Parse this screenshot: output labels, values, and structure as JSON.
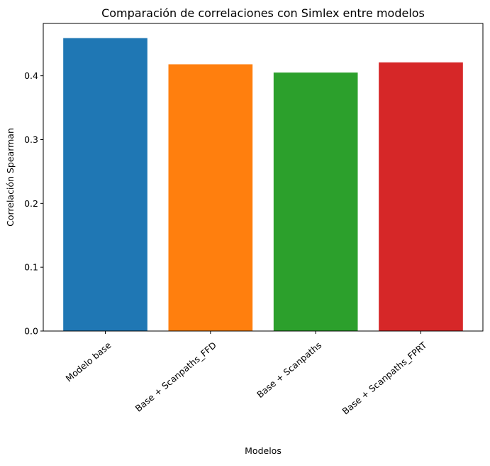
{
  "chart_data": {
    "type": "bar",
    "title": "Comparación de correlaciones con Simlex entre modelos",
    "xlabel": "Modelos",
    "ylabel": "Correlación Spearman",
    "categories": [
      "Modelo base",
      "Base + Scanpaths_FFD",
      "Base + Scanpaths",
      "Base + Scanpaths_FPRT"
    ],
    "values": [
      0.459,
      0.418,
      0.405,
      0.421
    ],
    "colors": [
      "#1f77b4",
      "#ff7f0e",
      "#2ca02c",
      "#d62728"
    ],
    "ylim": [
      0,
      0.482
    ],
    "yticks": [
      0.0,
      0.1,
      0.2,
      0.3,
      0.4
    ],
    "ytick_labels": [
      "0.0",
      "0.1",
      "0.2",
      "0.3",
      "0.4"
    ],
    "x_tick_rotation": 40,
    "grid": false,
    "legend": "none"
  }
}
